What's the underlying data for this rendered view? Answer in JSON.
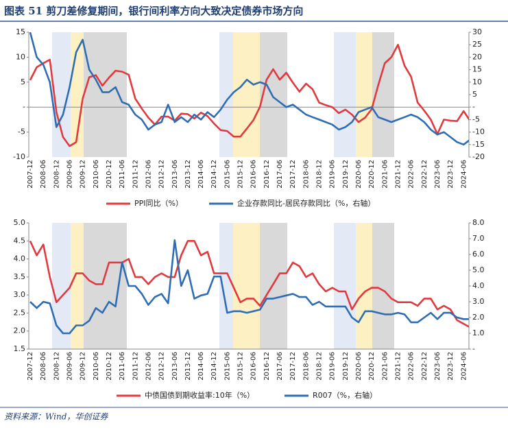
{
  "header": {
    "title": "图表 51   剪刀差修复期间，银行间利率方向大致决定债券市场方向"
  },
  "footer": {
    "source": "资料来源：Wind，华创证券"
  },
  "chart_data": [
    {
      "type": "line",
      "categories": [
        "2007-12",
        null,
        "2008-06",
        null,
        "2008-12",
        null,
        "2009-06",
        null,
        "2009-12",
        null,
        "2010-06",
        null,
        "2010-12",
        null,
        "2011-06",
        null,
        "2011-12",
        null,
        "2012-06",
        null,
        "2012-12",
        null,
        "2013-06",
        null,
        "2013-12",
        null,
        "2014-06",
        null,
        "2014-12",
        null,
        "2015-06",
        null,
        "2015-12",
        null,
        "2016-06",
        null,
        "2016-12",
        null,
        "2017-06",
        null,
        "2017-12",
        null,
        "2018-06",
        null,
        "2018-12",
        null,
        "2019-06",
        null,
        "2019-12",
        null,
        "2020-06",
        null,
        "2020-12",
        null,
        "2021-06",
        null,
        "2021-12",
        null,
        "2022-06",
        null,
        "2022-12",
        null,
        "2023-06",
        null,
        "2023-12",
        null,
        "2024-06",
        null
      ],
      "ylim": [
        -10,
        15
      ],
      "yticks": [
        -10,
        -5,
        {
          "value": 0,
          "label": "-"
        },
        5,
        10,
        15
      ],
      "y2lim": [
        -20,
        30
      ],
      "y2ticks": [
        -20,
        -15,
        -10,
        -5,
        {
          "value": 0,
          "label": "-"
        },
        5,
        10,
        15,
        20,
        25,
        30
      ],
      "series": [
        {
          "name": "PPI同比（%）",
          "color": "#e0393e",
          "axis": "y",
          "values": [
            5.4,
            8,
            8.8,
            9.5,
            -1,
            -6,
            -7.8,
            -7,
            1.7,
            6,
            6.4,
            4.3,
            5.9,
            7.3,
            7.1,
            6.5,
            1.7,
            -0.3,
            -2.1,
            -3.5,
            -1.9,
            -1.9,
            -2.7,
            -1.3,
            -1.4,
            -2.3,
            -1.1,
            -1.8,
            -3.3,
            -4.6,
            -4.8,
            -5.9,
            -5.9,
            -4.3,
            -2.6,
            0.1,
            5.5,
            7.6,
            5.5,
            6.9,
            4.9,
            3.1,
            4.7,
            3.6,
            0.9,
            0.4,
            0,
            -1.2,
            -0.5,
            -1.5,
            -3,
            -2.1,
            -0.4,
            4.4,
            8.8,
            10,
            12.5,
            8.3,
            6.1,
            0.9,
            -0.7,
            -2.5,
            -5.4,
            -2.5,
            -2.7,
            -2.8,
            -0.8,
            -2.8
          ]
        },
        {
          "name": "企业存款同比-居民存款同比（%，右轴）",
          "color": "#2e6db4",
          "axis": "y2",
          "values": [
            30,
            20,
            17,
            10,
            -8,
            -3,
            8,
            22,
            27,
            15,
            11,
            6,
            6,
            8,
            2,
            1,
            -3,
            -5,
            -9,
            -7,
            -6,
            1,
            -6,
            -4,
            -6,
            -3,
            -5,
            -2,
            -4,
            -1,
            3,
            6,
            8,
            11,
            9,
            10,
            9,
            4,
            2,
            0,
            1,
            -1,
            -3,
            -4,
            -5,
            -6,
            -7,
            -9,
            -8,
            -6,
            -2,
            -1,
            0,
            -4,
            -5,
            -6,
            -5,
            -4,
            -3,
            -4,
            -6,
            -9,
            -11,
            -10,
            -12,
            -14,
            -15,
            -13
          ]
        }
      ]
    },
    {
      "type": "line",
      "categories": [
        "2007-12",
        null,
        "2008-06",
        null,
        "2008-12",
        null,
        "2009-06",
        null,
        "2009-12",
        null,
        "2010-06",
        null,
        "2010-12",
        null,
        "2011-06",
        null,
        "2011-12",
        null,
        "2012-06",
        null,
        "2012-12",
        null,
        "2013-06",
        null,
        "2013-12",
        null,
        "2014-06",
        null,
        "2014-12",
        null,
        "2015-06",
        null,
        "2015-12",
        null,
        "2016-06",
        null,
        "2016-12",
        null,
        "2017-06",
        null,
        "2017-12",
        null,
        "2018-06",
        null,
        "2018-12",
        null,
        "2019-06",
        null,
        "2019-12",
        null,
        "2020-06",
        null,
        "2020-12",
        null,
        "2021-06",
        null,
        "2021-12",
        null,
        "2022-06",
        null,
        "2022-12",
        null,
        "2023-06",
        null,
        "2023-12",
        null,
        "2024-06",
        null
      ],
      "ylim": [
        1.5,
        5
      ],
      "yticks": [
        1.5,
        {
          "value": 2,
          "label": "2.0"
        },
        2.5,
        {
          "value": 3,
          "label": "3.0"
        },
        3.5,
        {
          "value": 4,
          "label": "4.0"
        },
        4.5,
        {
          "value": 5,
          "label": "5.0"
        }
      ],
      "y2lim": [
        0,
        8
      ],
      "y2ticks": [
        {
          "value": 0,
          "label": "-"
        },
        {
          "value": 1,
          "label": "1.0"
        },
        {
          "value": 2,
          "label": "2.0"
        },
        {
          "value": 3,
          "label": "3.0"
        },
        {
          "value": 4,
          "label": "4.0"
        },
        {
          "value": 5,
          "label": "5.0"
        },
        {
          "value": 6,
          "label": "6.0"
        },
        {
          "value": 7,
          "label": "7.0"
        },
        {
          "value": 8,
          "label": "8.0"
        }
      ],
      "series": [
        {
          "name": "中债国债到期收益率:10年（%）",
          "color": "#e0393e",
          "axis": "y",
          "values": [
            4.5,
            4.1,
            4.4,
            3.5,
            2.8,
            3.0,
            3.2,
            3.6,
            3.6,
            3.4,
            3.3,
            3.3,
            3.9,
            3.9,
            3.9,
            4.0,
            3.5,
            3.5,
            3.3,
            3.5,
            3.6,
            3.5,
            3.5,
            4.1,
            4.5,
            4.5,
            4.1,
            4.2,
            3.6,
            3.6,
            3.6,
            3.2,
            2.8,
            2.9,
            2.9,
            2.7,
            3.0,
            3.3,
            3.6,
            3.6,
            3.9,
            3.8,
            3.5,
            3.6,
            3.3,
            3.1,
            3.2,
            3.1,
            3.1,
            2.6,
            2.9,
            3.1,
            3.2,
            3.2,
            3.1,
            2.9,
            2.8,
            2.8,
            2.8,
            2.7,
            2.9,
            2.9,
            2.6,
            2.7,
            2.6,
            2.3,
            2.2,
            2.1
          ]
        },
        {
          "name": "R007（%，右轴）",
          "color": "#2e6db4",
          "axis": "y2",
          "values": [
            3.0,
            2.6,
            3.0,
            2.9,
            1.5,
            1.0,
            1.0,
            1.5,
            1.5,
            1.8,
            2.6,
            2.3,
            3.0,
            2.7,
            5.5,
            4.0,
            4.0,
            3.5,
            2.8,
            3.3,
            3.5,
            2.9,
            6.9,
            4.0,
            5.0,
            3.2,
            3.4,
            3.5,
            4.6,
            4.6,
            2.3,
            2.4,
            2.4,
            2.3,
            2.4,
            2.5,
            3.2,
            3.2,
            3.3,
            3.4,
            3.5,
            3.3,
            3.3,
            2.8,
            3.0,
            2.7,
            2.7,
            2.7,
            2.7,
            2.0,
            1.7,
            2.4,
            2.4,
            2.3,
            2.2,
            2.2,
            2.3,
            2.2,
            1.7,
            1.7,
            2.0,
            2.3,
            1.9,
            2.3,
            2.3,
            2.0,
            1.9,
            1.9
          ]
        }
      ]
    }
  ]
}
